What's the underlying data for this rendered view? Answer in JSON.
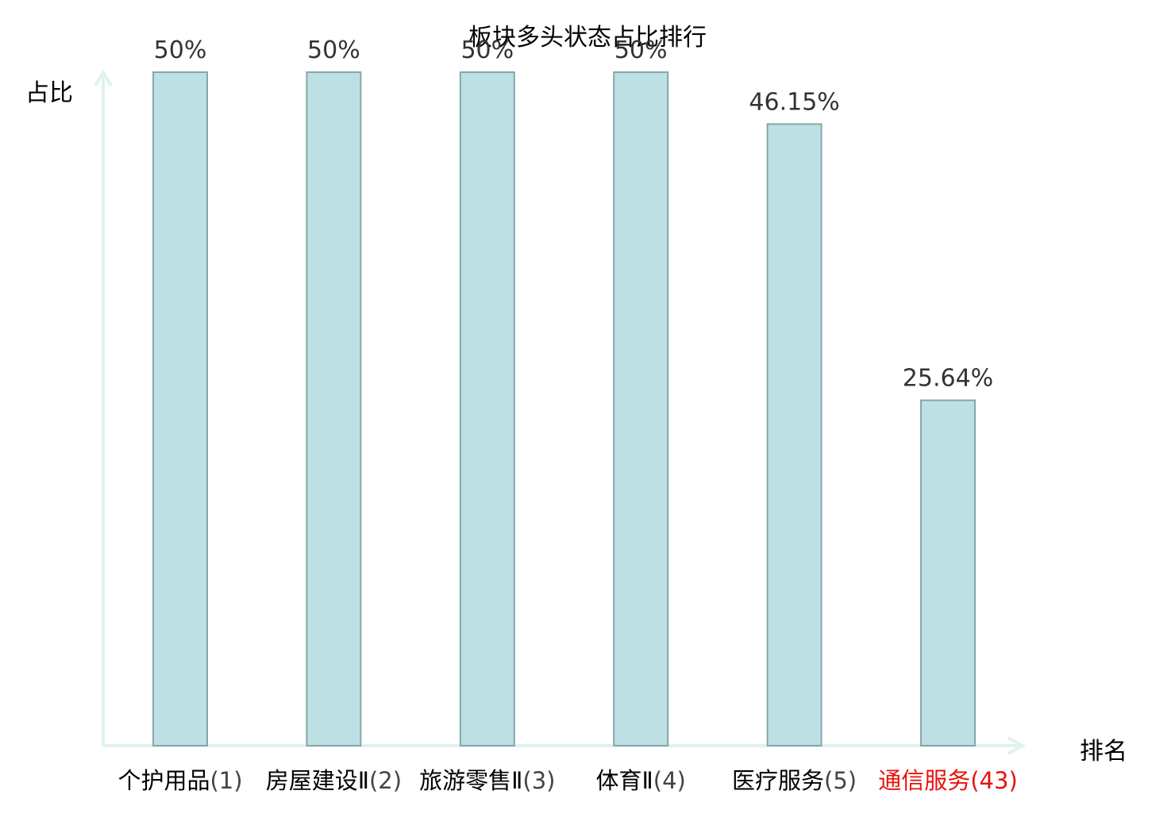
{
  "chart_data": {
    "type": "bar",
    "title": "板块多头状态占比排行",
    "ylabel": "占比",
    "xlabel": "排名",
    "ylim": [
      0,
      50
    ],
    "categories": [
      {
        "name": "个护用品",
        "rank": "(1)",
        "highlight": false
      },
      {
        "name": "房屋建设Ⅱ",
        "rank": "(2)",
        "highlight": false
      },
      {
        "name": "旅游零售Ⅱ",
        "rank": "(3)",
        "highlight": false
      },
      {
        "name": "体育Ⅱ",
        "rank": "(4)",
        "highlight": false
      },
      {
        "name": "医疗服务",
        "rank": "(5)",
        "highlight": false
      },
      {
        "name": "通信服务",
        "rank": "(43)",
        "highlight": true
      }
    ],
    "values": [
      50,
      50,
      50,
      50,
      46.15,
      25.64
    ],
    "value_labels": [
      "50%",
      "50%",
      "50%",
      "50%",
      "46.15%",
      "25.64%"
    ],
    "grid": false,
    "colors": {
      "bar_fill": "#bce0e3",
      "bar_stroke": "#86a7aa",
      "axis": "#dff2f0",
      "label": "#333333",
      "highlight": "#e8120c"
    }
  }
}
